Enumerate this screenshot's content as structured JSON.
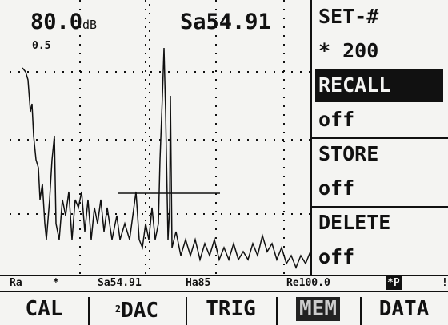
{
  "header": {
    "gain": "80.0",
    "gain_unit": "dB",
    "measure": "Sa54.91",
    "scale": "0.5"
  },
  "menu": {
    "items": [
      {
        "text": "SET-#",
        "style": "title"
      },
      {
        "text": "* 200",
        "style": "value"
      },
      {
        "text": "RECALL",
        "style": "selected"
      },
      {
        "text": "off",
        "style": "value"
      },
      {
        "text": "STORE",
        "style": "title"
      },
      {
        "text": "off",
        "style": "value"
      },
      {
        "text": "DELETE",
        "style": "title"
      },
      {
        "text": "off",
        "style": "value"
      }
    ]
  },
  "status": {
    "items": [
      "Ra",
      "*",
      "Sa54.91",
      "Ha85",
      "Re100.0",
      "*P",
      "!"
    ]
  },
  "tabs": {
    "items": [
      {
        "sup": "",
        "text": "CAL",
        "active": false
      },
      {
        "sup": "2",
        "text": "DAC",
        "active": false
      },
      {
        "sup": "",
        "text": "TRIG",
        "active": false
      },
      {
        "sup": "",
        "text": "MEM",
        "active": true
      },
      {
        "sup": "",
        "text": "DATA",
        "active": false
      }
    ]
  }
}
